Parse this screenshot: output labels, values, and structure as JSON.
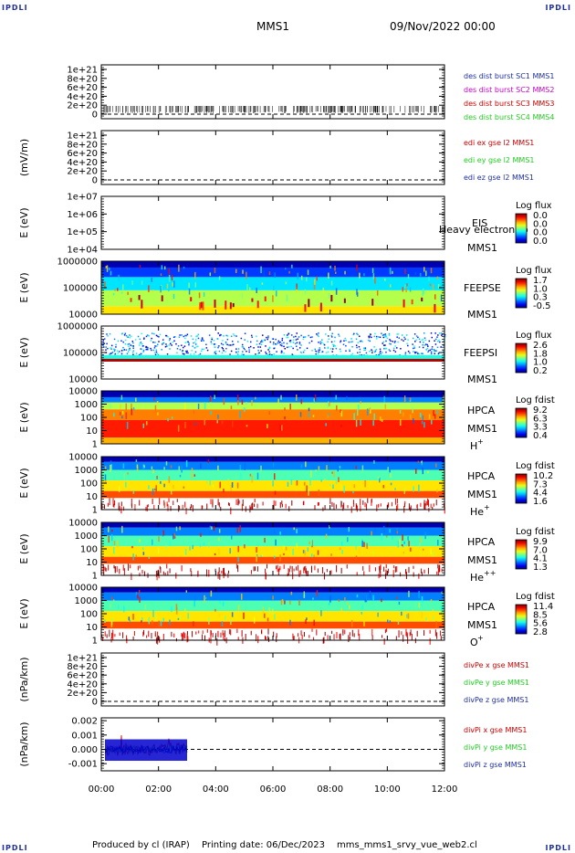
{
  "header": {
    "corner_label": "IPDLI",
    "mission": "MMS1",
    "datetime": "09/Nov/2022 00:00"
  },
  "footer": {
    "produced_by": "Produced by cl (IRAP)",
    "printing_date": "Printing date: 06/Dec/2023",
    "file": "mms_mms1_srvy_vue_web2.cl"
  },
  "colors": {
    "text_blue": "#1f2f9f",
    "red": "#cc0000",
    "green": "#22cc22",
    "blue": "#0000cc",
    "magenta": "#cc00cc"
  },
  "x_axis": {
    "ticks": [
      "00:00",
      "02:00",
      "04:00",
      "06:00",
      "08:00",
      "10:00",
      "12:00"
    ],
    "range_hours": [
      0,
      12
    ]
  },
  "chart_data": [
    {
      "type": "line",
      "id": "p1",
      "ylabel": "",
      "yticks": [
        "1e+21",
        "8e+20",
        "6e+20",
        "4e+20",
        "2e+20",
        "0"
      ],
      "legend": [
        {
          "text": "des dist burst SC1 MMS1",
          "color": "#1f2f9f"
        },
        {
          "text": "des dist burst SC2 MMS2",
          "color": "#cc00cc"
        },
        {
          "text": "des dist burst SC3 MMS3",
          "color": "#cc0000"
        },
        {
          "text": "des dist burst SC4 MMS4",
          "color": "#22cc22"
        }
      ]
    },
    {
      "type": "line",
      "id": "p2",
      "ylabel": "(mV/m)",
      "yticks": [
        "1e+21",
        "8e+20",
        "6e+20",
        "4e+20",
        "2e+20",
        "0"
      ],
      "legend": [
        {
          "text": "edi ex gse l2 MMS1",
          "color": "#cc0000"
        },
        {
          "text": "edi ey gse l2 MMS1",
          "color": "#22cc22"
        },
        {
          "text": "edi ez gse l2 MMS1",
          "color": "#1f2f9f"
        }
      ]
    },
    {
      "type": "heatmap",
      "id": "p3",
      "ylabel": "E (eV)",
      "yticks": [
        "1e+07",
        "1e+06",
        "1e+05",
        "1e+04"
      ],
      "labels": [
        "EIS",
        "MMS1"
      ],
      "overlay": "Heavy electron to",
      "cb_title": "Log flux",
      "cb_ticks": [
        "0.0",
        "0.0",
        "0.0",
        "0.0"
      ]
    },
    {
      "type": "heatmap",
      "id": "p4",
      "ylabel": "E (eV)",
      "yticks": [
        "1000000",
        "100000",
        "10000"
      ],
      "labels": [
        "FEEPSE",
        "MMS1"
      ],
      "cb_title": "Log flux",
      "cb_ticks": [
        "1.7",
        "1.0",
        "0.3",
        "-0.5"
      ]
    },
    {
      "type": "heatmap",
      "id": "p5",
      "ylabel": "E (eV)",
      "yticks": [
        "1000000",
        "100000",
        "10000"
      ],
      "labels": [
        "FEEPSI",
        "MMS1"
      ],
      "cb_title": "Log flux",
      "cb_ticks": [
        "2.6",
        "1.8",
        "1.0",
        "0.2"
      ]
    },
    {
      "type": "heatmap",
      "id": "p6",
      "ylabel": "E (eV)",
      "yticks": [
        "10000",
        "1000",
        "100",
        "10",
        "1"
      ],
      "labels": [
        "HPCA",
        "MMS1"
      ],
      "species": "H",
      "species_sup": "+",
      "cb_title": "Log fdist",
      "cb_ticks": [
        "9.2",
        "6.3",
        "3.3",
        "0.4"
      ]
    },
    {
      "type": "heatmap",
      "id": "p7",
      "ylabel": "E (eV)",
      "yticks": [
        "10000",
        "1000",
        "100",
        "10",
        "1"
      ],
      "labels": [
        "HPCA",
        "MMS1"
      ],
      "species": "He",
      "species_sup": "+",
      "cb_title": "Log fdist",
      "cb_ticks": [
        "10.2",
        "7.3",
        "4.4",
        "1.6"
      ]
    },
    {
      "type": "heatmap",
      "id": "p8",
      "ylabel": "E (eV)",
      "yticks": [
        "10000",
        "1000",
        "100",
        "10",
        "1"
      ],
      "labels": [
        "HPCA",
        "MMS1"
      ],
      "species": "He",
      "species_sup": "++",
      "cb_title": "Log fdist",
      "cb_ticks": [
        "9.9",
        "7.0",
        "4.1",
        "1.3"
      ]
    },
    {
      "type": "heatmap",
      "id": "p9",
      "ylabel": "E (eV)",
      "yticks": [
        "10000",
        "1000",
        "100",
        "10",
        "1"
      ],
      "labels": [
        "HPCA",
        "MMS1"
      ],
      "species": "O",
      "species_sup": "+",
      "cb_title": "Log fdist",
      "cb_ticks": [
        "11.4",
        "8.5",
        "5.6",
        "2.8"
      ]
    },
    {
      "type": "line",
      "id": "p10",
      "ylabel": "(nPa/km)",
      "yticks": [
        "1e+21",
        "8e+20",
        "6e+20",
        "4e+20",
        "2e+20",
        "0"
      ],
      "legend": [
        {
          "text": "divPe x gse MMS1",
          "color": "#cc0000"
        },
        {
          "text": "divPe y gse MMS1",
          "color": "#22cc22"
        },
        {
          "text": "divPe z gse MMS1",
          "color": "#1f2f9f"
        }
      ]
    },
    {
      "type": "line",
      "id": "p11",
      "ylabel": "(nPa/km)",
      "yticks": [
        "0.002",
        "0.001",
        "0.000",
        "-0.001"
      ],
      "ylim": [
        -0.0015,
        0.0022
      ],
      "x_data_end_hours": 3.0,
      "legend": [
        {
          "text": "divPi x gse MMS1",
          "color": "#cc0000"
        },
        {
          "text": "divPi y gse MMS1",
          "color": "#22cc22"
        },
        {
          "text": "divPi z gse MMS1",
          "color": "#1f2f9f"
        }
      ]
    }
  ]
}
